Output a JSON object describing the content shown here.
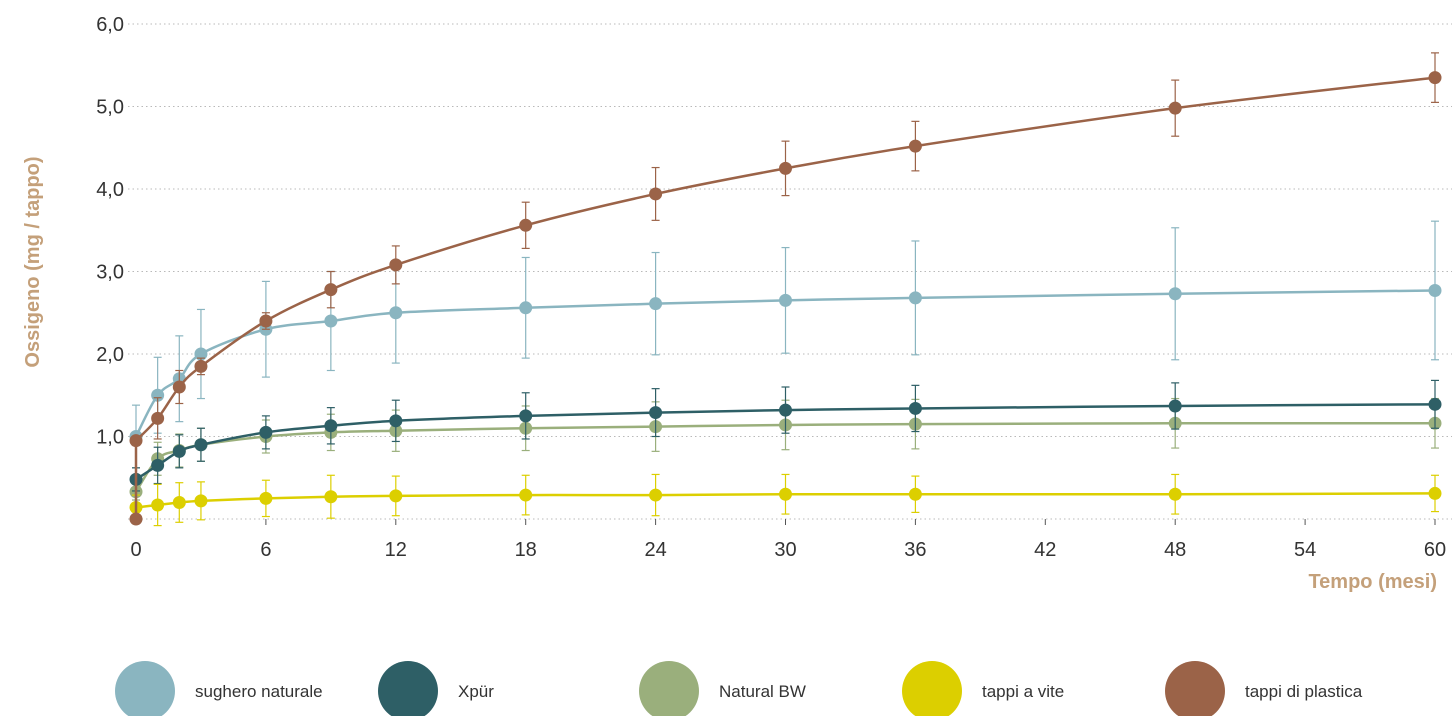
{
  "chart_data": {
    "type": "line",
    "xlabel": "Tempo (mesi)",
    "ylabel": "Ossigeno (mg / tappo)",
    "xlim": [
      0,
      60
    ],
    "ylim": [
      0,
      6
    ],
    "x_ticks": [
      "0",
      "6",
      "12",
      "18",
      "24",
      "30",
      "36",
      "42",
      "48",
      "54",
      "60"
    ],
    "y_ticks": [
      "1,0",
      "2,0",
      "3,0",
      "4,0",
      "5,0",
      "6,0"
    ],
    "grid": true,
    "legend_position": "bottom",
    "series": [
      {
        "name": "sughero naturale",
        "color": "#8ab5c0",
        "x": [
          0,
          1,
          2,
          3,
          6,
          9,
          12,
          18,
          24,
          30,
          36,
          48,
          60
        ],
        "y": [
          1.0,
          1.5,
          1.7,
          2.0,
          2.3,
          2.4,
          2.5,
          2.56,
          2.61,
          2.65,
          2.68,
          2.73,
          2.77
        ],
        "err": [
          0.38,
          0.46,
          0.52,
          0.54,
          0.58,
          0.6,
          0.61,
          0.61,
          0.62,
          0.64,
          0.69,
          0.8,
          0.84
        ]
      },
      {
        "name": "Xpür",
        "color": "#2e5f66",
        "x": [
          0,
          1,
          2,
          3,
          6,
          9,
          12,
          18,
          24,
          30,
          36,
          48,
          60
        ],
        "y": [
          0.48,
          0.65,
          0.82,
          0.9,
          1.05,
          1.13,
          1.19,
          1.25,
          1.29,
          1.32,
          1.34,
          1.37,
          1.39
        ],
        "err": [
          0.14,
          0.22,
          0.2,
          0.2,
          0.2,
          0.22,
          0.25,
          0.28,
          0.29,
          0.28,
          0.28,
          0.28,
          0.29
        ]
      },
      {
        "name": "Natural BW",
        "color": "#9aaf7c",
        "x": [
          0,
          1,
          2,
          3,
          6,
          9,
          12,
          18,
          24,
          30,
          36,
          48,
          60
        ],
        "y": [
          0.33,
          0.73,
          0.83,
          0.9,
          1.0,
          1.05,
          1.07,
          1.1,
          1.12,
          1.14,
          1.15,
          1.16,
          1.16
        ],
        "err": [
          0.1,
          0.2,
          0.2,
          0.2,
          0.2,
          0.22,
          0.25,
          0.27,
          0.3,
          0.3,
          0.3,
          0.3,
          0.3
        ]
      },
      {
        "name": "tappi a vite",
        "color": "#dccf00",
        "x": [
          0,
          1,
          2,
          3,
          6,
          9,
          12,
          18,
          24,
          30,
          36,
          48,
          60
        ],
        "y": [
          0.14,
          0.17,
          0.2,
          0.22,
          0.25,
          0.27,
          0.28,
          0.29,
          0.29,
          0.3,
          0.3,
          0.3,
          0.31
        ],
        "err": [
          0.15,
          0.25,
          0.24,
          0.23,
          0.22,
          0.26,
          0.24,
          0.24,
          0.25,
          0.24,
          0.22,
          0.24,
          0.22
        ]
      },
      {
        "name": "tappi di plastica",
        "color": "#9b6348",
        "x": [
          0,
          1,
          2,
          3,
          6,
          9,
          12,
          18,
          24,
          30,
          36,
          48,
          60
        ],
        "y": [
          0.0,
          1.22,
          1.6,
          1.85,
          2.4,
          2.78,
          3.08,
          3.56,
          3.94,
          4.25,
          4.52,
          4.98,
          5.35
        ],
        "err": [
          0,
          0.25,
          0.2,
          0.1,
          0.1,
          0.22,
          0.23,
          0.28,
          0.32,
          0.33,
          0.3,
          0.34,
          0.3
        ]
      }
    ],
    "extra_points": [
      {
        "series": "tappi di plastica",
        "x": 0,
        "y": 0.95
      }
    ]
  }
}
